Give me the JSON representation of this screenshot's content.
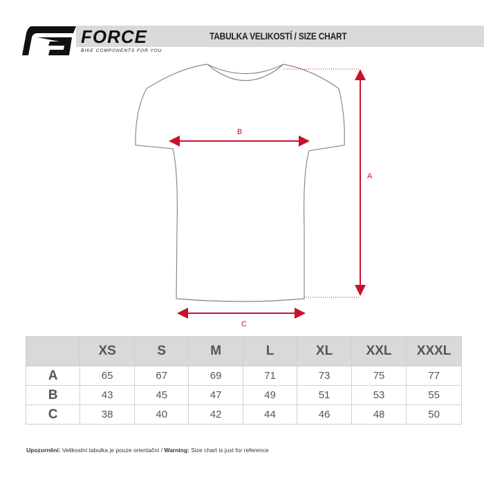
{
  "brand": {
    "name": "FORCE",
    "tagline": "BIKE COMPONENTS FOR YOU"
  },
  "title": "TABULKA VELIKOSTÍ / SIZE CHART",
  "diagram": {
    "labels": {
      "a": "A",
      "b": "B",
      "c": "C"
    },
    "arrow_color": "#c8102e"
  },
  "table": {
    "headers": [
      "XS",
      "S",
      "M",
      "L",
      "XL",
      "XXL",
      "XXXL"
    ],
    "rows": [
      {
        "label": "A",
        "values": [
          "65",
          "67",
          "69",
          "71",
          "73",
          "75",
          "77"
        ]
      },
      {
        "label": "B",
        "values": [
          "43",
          "45",
          "47",
          "49",
          "51",
          "53",
          "55"
        ]
      },
      {
        "label": "C",
        "values": [
          "38",
          "40",
          "42",
          "44",
          "46",
          "48",
          "50"
        ]
      }
    ]
  },
  "note": {
    "cz_label": "Upozornění:",
    "cz_text": " Velikostní tabulka je pouze orientační / ",
    "en_label": "Warning:",
    "en_text": " Size chart is just for reference"
  }
}
